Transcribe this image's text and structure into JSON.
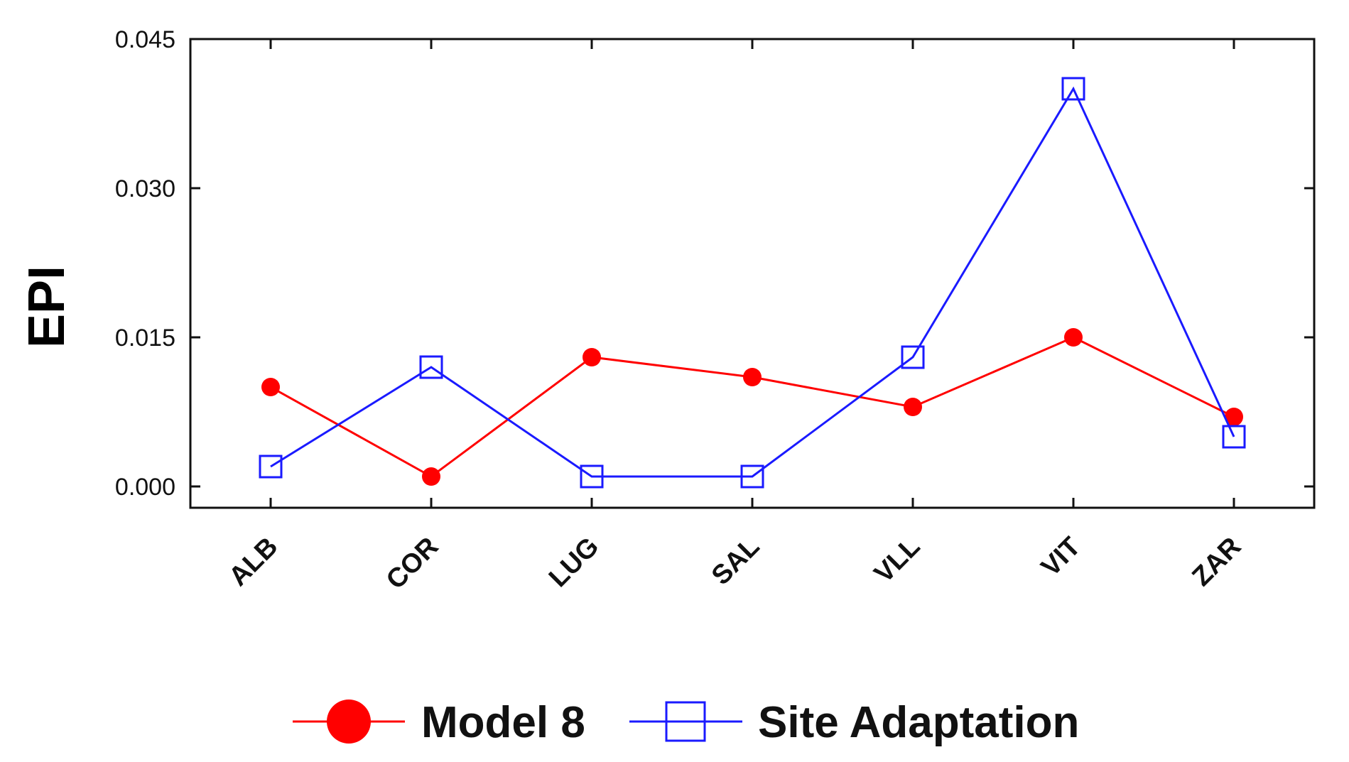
{
  "chart_data": {
    "type": "line",
    "title": "",
    "xlabel": "",
    "ylabel": "EPI",
    "categories": [
      "ALB",
      "COR",
      "LUG",
      "SAL",
      "VLL",
      "VIT",
      "ZAR"
    ],
    "ylim": [
      0,
      0.045
    ],
    "yticks": [
      "0.000",
      "0.015",
      "0.030",
      "0.045"
    ],
    "grid": false,
    "legend_position": "bottom",
    "series": [
      {
        "name": "Model 8",
        "color": "#ff0000",
        "marker": "filled-circle",
        "values": [
          0.01,
          0.001,
          0.013,
          0.011,
          0.008,
          0.015,
          0.007
        ]
      },
      {
        "name": "Site Adaptation",
        "color": "#1a1aff",
        "marker": "open-square",
        "values": [
          0.002,
          0.012,
          0.001,
          0.001,
          0.013,
          0.04,
          0.005
        ]
      }
    ]
  }
}
